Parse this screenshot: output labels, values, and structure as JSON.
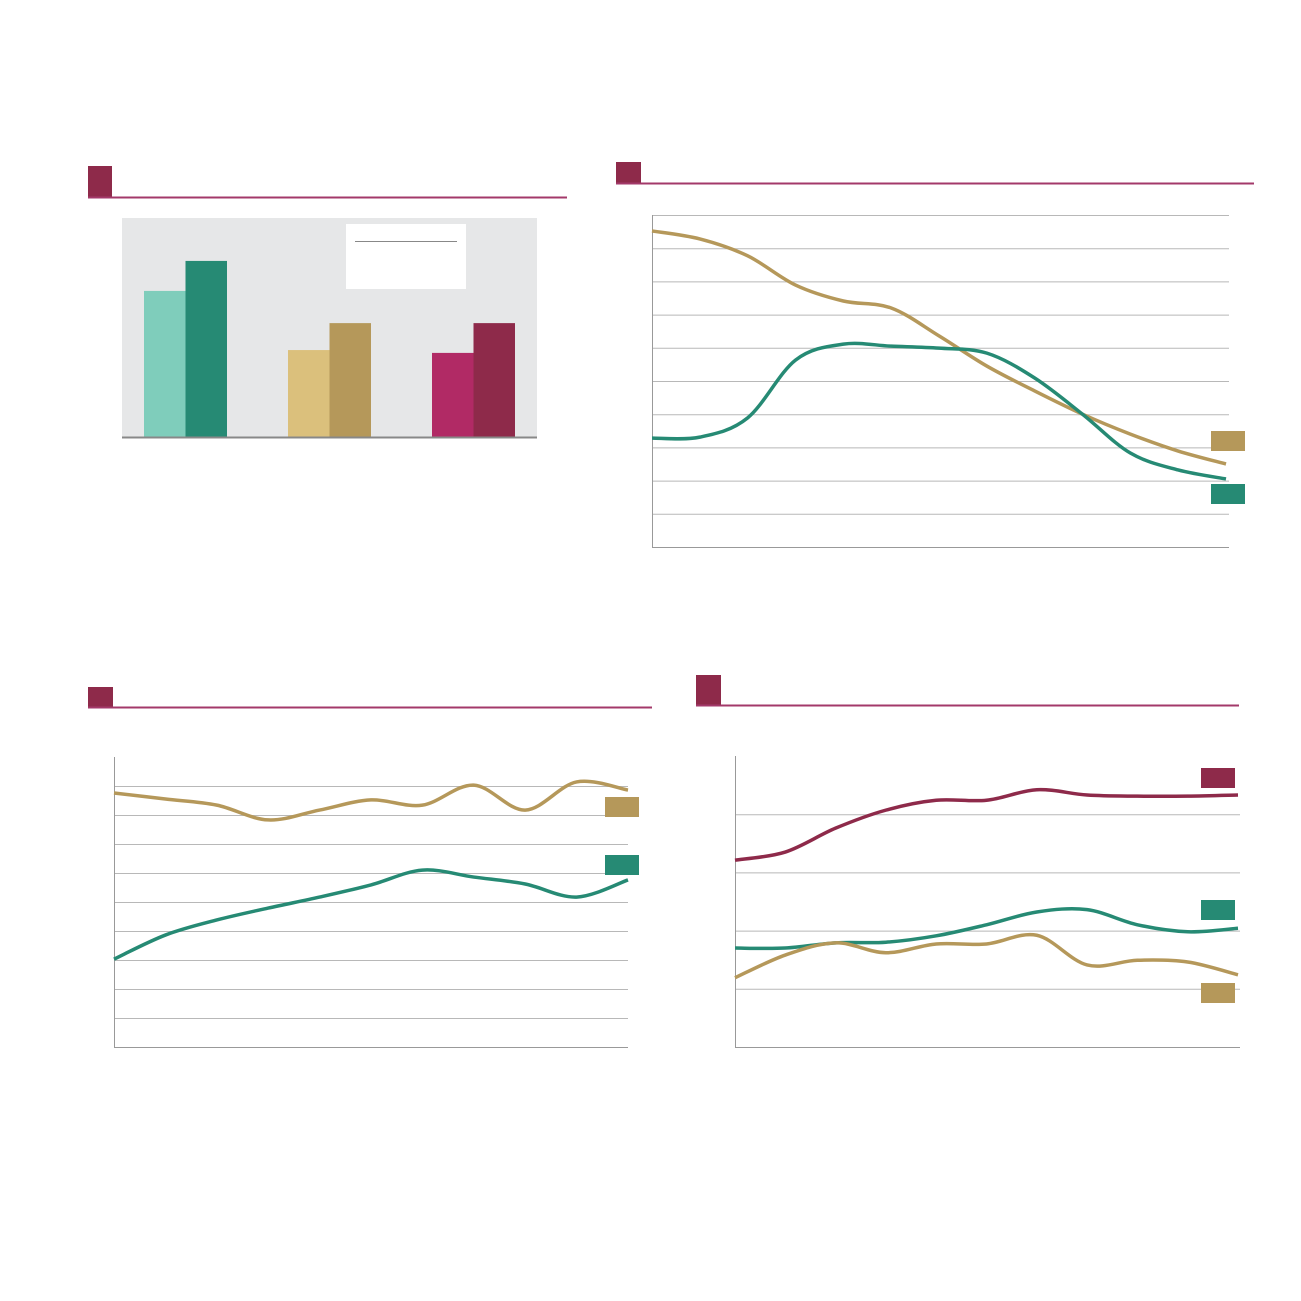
{
  "chart_data": [
    {
      "type": "bar",
      "categories": [
        null,
        null,
        null
      ],
      "ylim": [
        0,
        100
      ],
      "background": "#e6e7e8",
      "series": [
        {
          "colors": [
            "#7fcdbb",
            "#dbc07c",
            "#b12a65"
          ],
          "values": [
            66.7,
            39.7,
            38.4
          ]
        },
        {
          "colors": [
            "#268a74",
            "#b5985a",
            "#8e2a4a"
          ],
          "values": [
            80.4,
            52,
            52
          ]
        }
      ]
    },
    {
      "type": "line",
      "x": [
        0,
        1,
        2,
        3,
        4,
        5,
        6,
        7,
        8,
        9,
        10,
        11,
        12
      ],
      "xlim": [
        0,
        12
      ],
      "ylim": [
        0,
        10
      ],
      "yticks": [
        0,
        1,
        2,
        3,
        4,
        5,
        6,
        7,
        8,
        9,
        10
      ],
      "grid": true,
      "series": [
        {
          "color": "#b5985a",
          "values": [
            9.52,
            9.28,
            8.77,
            7.89,
            7.41,
            7.2,
            6.36,
            5.45,
            4.7,
            4.0,
            3.4,
            2.89,
            2.5
          ]
        },
        {
          "color": "#268a74",
          "values": [
            3.28,
            3.31,
            3.89,
            5.63,
            6.11,
            6.05,
            5.99,
            5.84,
            5.09,
            4.0,
            2.83,
            2.32,
            2.05
          ]
        }
      ]
    },
    {
      "type": "line",
      "x": [
        0,
        1,
        2,
        3,
        4,
        5,
        6,
        7,
        8,
        9,
        10
      ],
      "xlim": [
        0,
        10
      ],
      "ylim": [
        0,
        10
      ],
      "yticks": [
        1,
        2,
        3,
        4,
        5,
        6,
        7,
        8,
        9
      ],
      "grid": true,
      "series": [
        {
          "color": "#b5985a",
          "values": [
            8.76,
            8.55,
            8.34,
            7.83,
            8.17,
            8.52,
            8.34,
            9.03,
            8.17,
            9.14,
            8.86
          ]
        },
        {
          "color": "#268a74",
          "values": [
            3.03,
            3.86,
            4.38,
            4.79,
            5.17,
            5.59,
            6.1,
            5.86,
            5.62,
            5.17,
            5.76
          ]
        }
      ]
    },
    {
      "type": "line",
      "x": [
        0,
        1,
        2,
        3,
        4,
        5,
        6,
        7,
        8,
        9,
        10
      ],
      "xlim": [
        0,
        10
      ],
      "ylim": [
        0,
        5
      ],
      "yticks": [
        1,
        2,
        3,
        4
      ],
      "grid": true,
      "series": [
        {
          "color": "#8e2a4a",
          "values": [
            3.21,
            3.35,
            3.76,
            4.07,
            4.24,
            4.24,
            4.42,
            4.33,
            4.31,
            4.31,
            4.33
          ]
        },
        {
          "color": "#268a74",
          "values": [
            1.7,
            1.7,
            1.79,
            1.8,
            1.91,
            2.1,
            2.32,
            2.36,
            2.1,
            1.98,
            2.04
          ]
        },
        {
          "color": "#b5985a",
          "values": [
            1.19,
            1.58,
            1.79,
            1.62,
            1.77,
            1.77,
            1.92,
            1.41,
            1.49,
            1.46,
            1.24
          ]
        }
      ]
    }
  ]
}
